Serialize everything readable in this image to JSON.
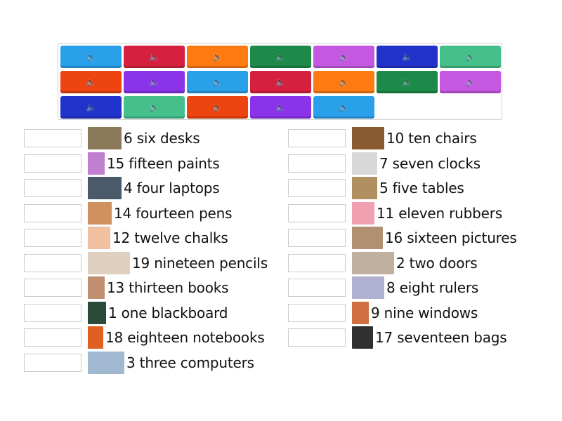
{
  "sound_buttons": {
    "icon": "speaker-icon",
    "colors": [
      "#2aa0ea",
      "#d62040",
      "#ff7a10",
      "#1e8a4a",
      "#c558e0",
      "#2233cc",
      "#45c08a",
      "#ee4410",
      "#8a33e8",
      "#2aa0ea",
      "#d62040",
      "#ff7a10",
      "#1e8a4a",
      "#c558e0",
      "#2233cc",
      "#45c08a",
      "#ee4410",
      "#8a33e8",
      "#2aa0ea"
    ]
  },
  "left_items": [
    {
      "label": "6 six desks",
      "image": "desks"
    },
    {
      "label": "15 fifteen paints",
      "image": "paints"
    },
    {
      "label": "4 four laptops",
      "image": "laptops"
    },
    {
      "label": "14 fourteen pens",
      "image": "pens"
    },
    {
      "label": "12 twelve chalks",
      "image": "chalks"
    },
    {
      "label": "19 nineteen pencils",
      "image": "pencils"
    },
    {
      "label": "13 thirteen books",
      "image": "books"
    },
    {
      "label": "1 one blackboard",
      "image": "blackboard"
    },
    {
      "label": "18 eighteen notebooks",
      "image": "notebooks"
    },
    {
      "label": "3 three computers",
      "image": "computers"
    }
  ],
  "right_items": [
    {
      "label": "10 ten chairs",
      "image": "chairs"
    },
    {
      "label": "7 seven clocks",
      "image": "clock"
    },
    {
      "label": "5 five tables",
      "image": "tables"
    },
    {
      "label": "11 eleven rubbers",
      "image": "rubber"
    },
    {
      "label": "16 sixteen pictures",
      "image": "pictures"
    },
    {
      "label": "2 two doors",
      "image": "doors"
    },
    {
      "label": "8 eight rulers",
      "image": "rulers"
    },
    {
      "label": "9 nine windows",
      "image": "windows"
    },
    {
      "label": "17 seventeen bags",
      "image": "bag"
    }
  ]
}
